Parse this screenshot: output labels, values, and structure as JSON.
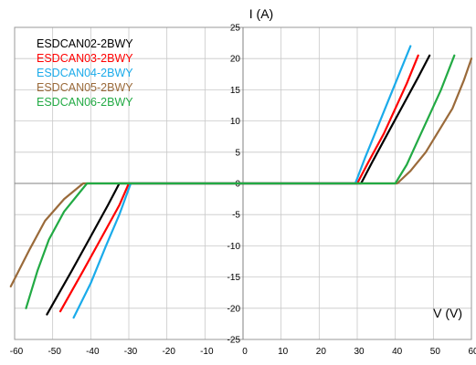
{
  "chart_data": {
    "type": "line",
    "xlabel": "V (V)",
    "ylabel": "I (A)",
    "xlim": [
      -60,
      60
    ],
    "ylim": [
      -25,
      25
    ],
    "xticks": [
      -60,
      -50,
      -40,
      -30,
      -20,
      -10,
      0,
      10,
      20,
      30,
      40,
      50,
      60
    ],
    "yticks": [
      -25,
      -20,
      -15,
      -10,
      -5,
      0,
      5,
      10,
      15,
      20,
      25
    ],
    "grid": true,
    "legend_position": "top-left",
    "series": [
      {
        "name": "ESDCAN02-2BWY",
        "color": "#000000",
        "points": [
          [
            -51.5,
            -21
          ],
          [
            -45,
            -14
          ],
          [
            -40,
            -8.5
          ],
          [
            -35.5,
            -3.5
          ],
          [
            -32.5,
            0
          ],
          [
            31,
            0
          ],
          [
            34,
            3.5
          ],
          [
            38,
            8
          ],
          [
            42,
            12.5
          ],
          [
            46,
            17
          ],
          [
            49,
            20.5
          ]
        ]
      },
      {
        "name": "ESDCAN03-2BWY",
        "color": "#ff0000",
        "points": [
          [
            -48,
            -20.5
          ],
          [
            -42,
            -14
          ],
          [
            -37,
            -8.5
          ],
          [
            -32.5,
            -3.5
          ],
          [
            -30,
            0
          ],
          [
            30,
            0
          ],
          [
            33,
            3.5
          ],
          [
            37,
            8
          ],
          [
            40,
            12
          ],
          [
            43,
            16
          ],
          [
            46,
            20.5
          ]
        ]
      },
      {
        "name": "ESDCAN04-2BWY",
        "color": "#1aabea",
        "points": [
          [
            -44.5,
            -21.5
          ],
          [
            -40,
            -16
          ],
          [
            -36,
            -10
          ],
          [
            -32.5,
            -5
          ],
          [
            -29.5,
            0
          ],
          [
            29.5,
            0
          ],
          [
            32,
            4
          ],
          [
            35,
            8.5
          ],
          [
            38,
            13
          ],
          [
            41,
            17.5
          ],
          [
            44,
            22
          ]
        ]
      },
      {
        "name": "ESDCAN05-2BWY",
        "color": "#9a6a3a",
        "points": [
          [
            -61,
            -16.5
          ],
          [
            -56,
            -10.5
          ],
          [
            -52,
            -6
          ],
          [
            -47,
            -2.5
          ],
          [
            -42,
            0
          ],
          [
            40.5,
            0
          ],
          [
            44,
            2
          ],
          [
            48,
            5
          ],
          [
            52,
            9
          ],
          [
            55,
            12
          ],
          [
            58,
            16.5
          ],
          [
            60,
            20
          ]
        ]
      },
      {
        "name": "ESDCAN06-2BWY",
        "color": "#22aa44",
        "points": [
          [
            -57,
            -20
          ],
          [
            -54,
            -14
          ],
          [
            -51,
            -9
          ],
          [
            -47,
            -4.5
          ],
          [
            -41,
            0
          ],
          [
            40,
            0
          ],
          [
            43,
            3
          ],
          [
            46,
            7
          ],
          [
            49,
            11
          ],
          [
            52,
            15
          ],
          [
            55.5,
            20.5
          ]
        ]
      }
    ]
  }
}
